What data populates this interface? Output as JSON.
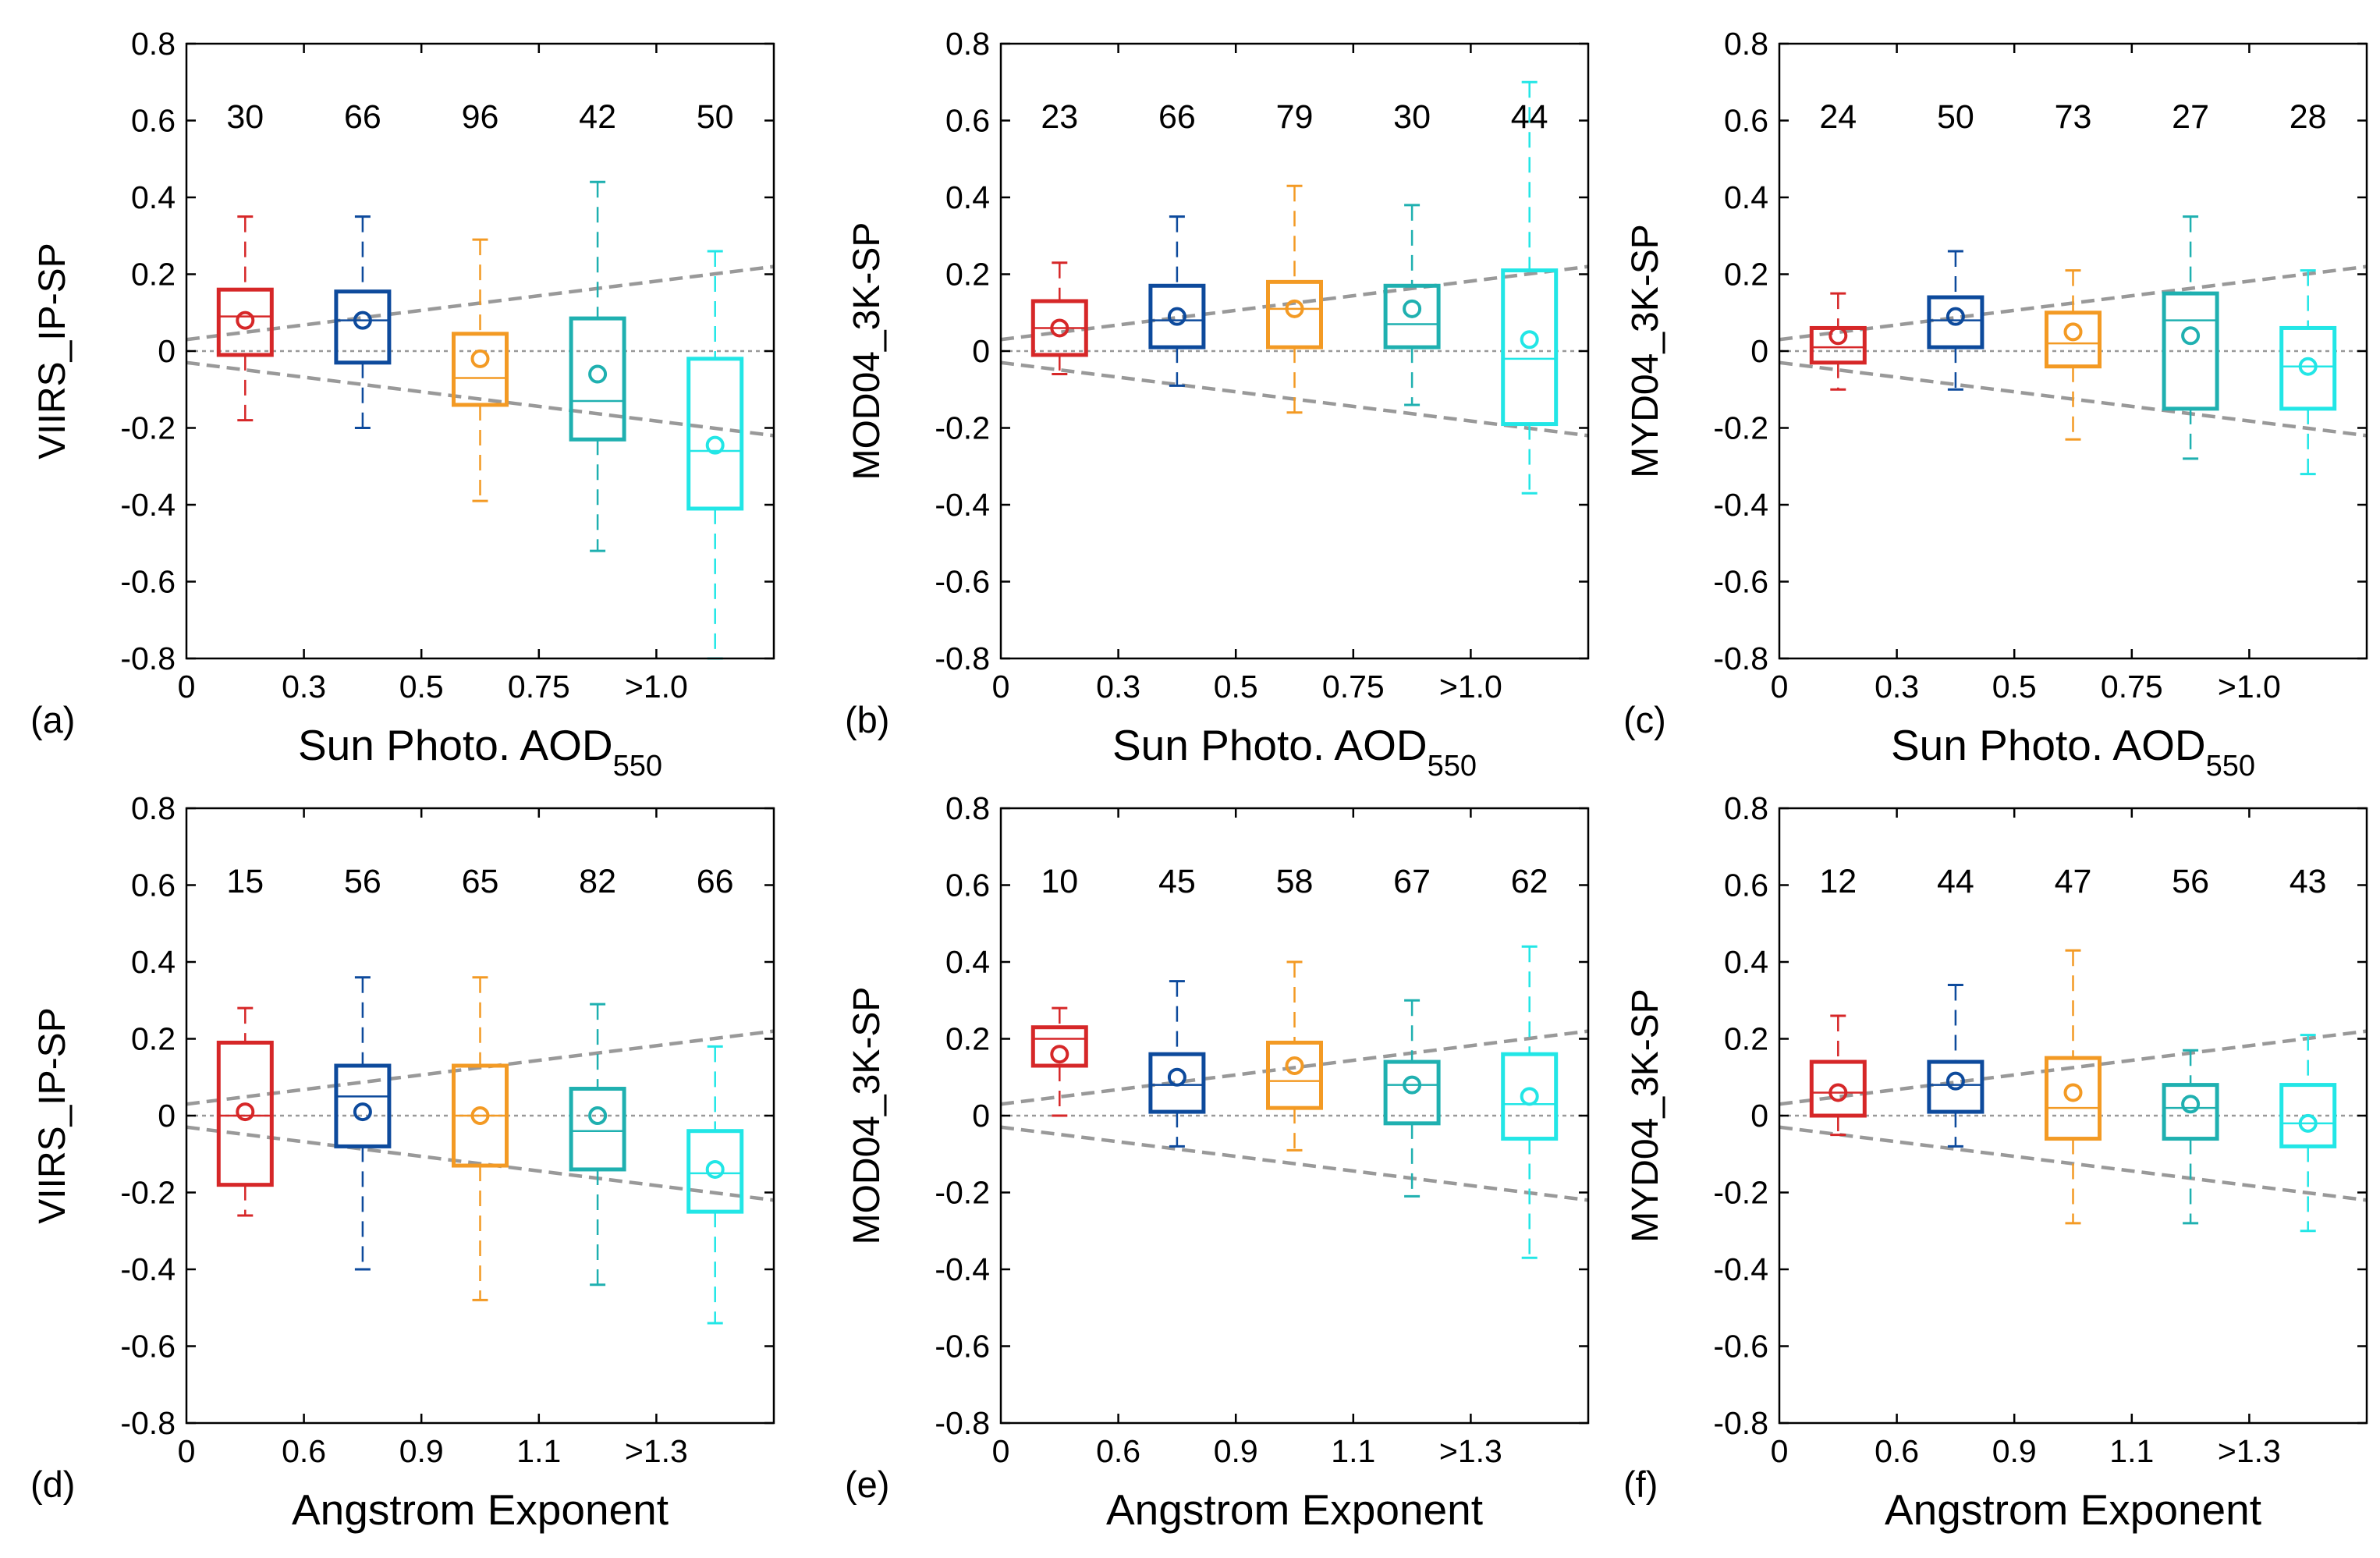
{
  "figure": {
    "ref_line_color": "#999999",
    "series_colors": [
      "#d62728",
      "#0d4a9c",
      "#f39a24",
      "#1fb0b0",
      "#22e6e6"
    ]
  },
  "chart_data": [
    {
      "type": "box",
      "panel_label": "(a)",
      "ylabel": "VIIRS_IP-SP",
      "xlabel": "Sun Photo. AOD",
      "xlabel_sub": "550",
      "xtick_labels": [
        "0",
        "0.3",
        "0.5",
        "0.75",
        ">1.0"
      ],
      "ylim": [
        -0.8,
        0.8
      ],
      "ytick_labels": [
        "0.8",
        "0.6",
        "0.4",
        "0.2",
        "0",
        "-0.2",
        "-0.4",
        "-0.6",
        "-0.8"
      ],
      "counts": [
        "30",
        "66",
        "96",
        "42",
        "50"
      ],
      "boxes": [
        {
          "min": -0.18,
          "q1": -0.01,
          "median": 0.09,
          "q3": 0.16,
          "max": 0.35,
          "mean": 0.08
        },
        {
          "min": -0.2,
          "q1": -0.03,
          "median": 0.08,
          "q3": 0.155,
          "max": 0.35,
          "mean": 0.08
        },
        {
          "min": -0.39,
          "q1": -0.14,
          "median": -0.07,
          "q3": 0.045,
          "max": 0.29,
          "mean": -0.02
        },
        {
          "min": -0.52,
          "q1": -0.23,
          "median": -0.13,
          "q3": 0.085,
          "max": 0.44,
          "mean": -0.06
        },
        {
          "min": -0.8,
          "q1": -0.41,
          "median": -0.26,
          "q3": -0.02,
          "max": 0.26,
          "mean": -0.245
        }
      ],
      "ee_envelope": {
        "intercept": 0.03,
        "end": 0.22
      }
    },
    {
      "type": "box",
      "panel_label": "(b)",
      "ylabel": "MOD04_3K-SP",
      "xlabel": "Sun Photo. AOD",
      "xlabel_sub": "550",
      "xtick_labels": [
        "0",
        "0.3",
        "0.5",
        "0.75",
        ">1.0"
      ],
      "ylim": [
        -0.8,
        0.8
      ],
      "ytick_labels": [
        "0.8",
        "0.6",
        "0.4",
        "0.2",
        "0",
        "-0.2",
        "-0.4",
        "-0.6",
        "-0.8"
      ],
      "counts": [
        "23",
        "66",
        "79",
        "30",
        "44"
      ],
      "boxes": [
        {
          "min": -0.06,
          "q1": -0.01,
          "median": 0.06,
          "q3": 0.13,
          "max": 0.23,
          "mean": 0.06
        },
        {
          "min": -0.09,
          "q1": 0.01,
          "median": 0.08,
          "q3": 0.17,
          "max": 0.35,
          "mean": 0.09
        },
        {
          "min": -0.16,
          "q1": 0.01,
          "median": 0.11,
          "q3": 0.18,
          "max": 0.43,
          "mean": 0.11
        },
        {
          "min": -0.14,
          "q1": 0.01,
          "median": 0.07,
          "q3": 0.17,
          "max": 0.38,
          "mean": 0.11
        },
        {
          "min": -0.37,
          "q1": -0.19,
          "median": -0.02,
          "q3": 0.21,
          "max": 0.7,
          "mean": 0.03
        }
      ],
      "ee_envelope": {
        "intercept": 0.03,
        "end": 0.22
      }
    },
    {
      "type": "box",
      "panel_label": "(c)",
      "ylabel": "MYD04_3K-SP",
      "xlabel": "Sun Photo. AOD",
      "xlabel_sub": "550",
      "xtick_labels": [
        "0",
        "0.3",
        "0.5",
        "0.75",
        ">1.0"
      ],
      "ylim": [
        -0.8,
        0.8
      ],
      "ytick_labels": [
        "0.8",
        "0.6",
        "0.4",
        "0.2",
        "0",
        "-0.2",
        "-0.4",
        "-0.6",
        "-0.8"
      ],
      "counts": [
        "24",
        "50",
        "73",
        "27",
        "28"
      ],
      "boxes": [
        {
          "min": -0.1,
          "q1": -0.03,
          "median": 0.01,
          "q3": 0.06,
          "max": 0.15,
          "mean": 0.04
        },
        {
          "min": -0.1,
          "q1": 0.01,
          "median": 0.08,
          "q3": 0.14,
          "max": 0.26,
          "mean": 0.09
        },
        {
          "min": -0.23,
          "q1": -0.04,
          "median": 0.02,
          "q3": 0.1,
          "max": 0.21,
          "mean": 0.05
        },
        {
          "min": -0.28,
          "q1": -0.15,
          "median": 0.08,
          "q3": 0.15,
          "max": 0.35,
          "mean": 0.04
        },
        {
          "min": -0.32,
          "q1": -0.15,
          "median": -0.04,
          "q3": 0.06,
          "max": 0.21,
          "mean": -0.04
        }
      ],
      "ee_envelope": {
        "intercept": 0.03,
        "end": 0.22
      }
    },
    {
      "type": "box",
      "panel_label": "(d)",
      "ylabel": "VIIRS_IP-SP",
      "xlabel": "Angstrom Exponent",
      "xlabel_sub": "",
      "xtick_labels": [
        "0",
        "0.6",
        "0.9",
        "1.1",
        ">1.3"
      ],
      "ylim": [
        -0.8,
        0.8
      ],
      "ytick_labels": [
        "0.8",
        "0.6",
        "0.4",
        "0.2",
        "0",
        "-0.2",
        "-0.4",
        "-0.6",
        "-0.8"
      ],
      "counts": [
        "15",
        "56",
        "65",
        "82",
        "66"
      ],
      "boxes": [
        {
          "min": -0.26,
          "q1": -0.18,
          "median": 0.0,
          "q3": 0.19,
          "max": 0.28,
          "mean": 0.01
        },
        {
          "min": -0.4,
          "q1": -0.08,
          "median": 0.05,
          "q3": 0.13,
          "max": 0.36,
          "mean": 0.01
        },
        {
          "min": -0.48,
          "q1": -0.13,
          "median": 0.0,
          "q3": 0.13,
          "max": 0.36,
          "mean": 0.0
        },
        {
          "min": -0.44,
          "q1": -0.14,
          "median": -0.04,
          "q3": 0.07,
          "max": 0.29,
          "mean": 0.0
        },
        {
          "min": -0.54,
          "q1": -0.25,
          "median": -0.15,
          "q3": -0.04,
          "max": 0.18,
          "mean": -0.14
        }
      ],
      "ee_envelope": {
        "intercept": 0.03,
        "end": 0.22
      }
    },
    {
      "type": "box",
      "panel_label": "(e)",
      "ylabel": "MOD04_3K-SP",
      "xlabel": "Angstrom Exponent",
      "xlabel_sub": "",
      "xtick_labels": [
        "0",
        "0.6",
        "0.9",
        "1.1",
        ">1.3"
      ],
      "ylim": [
        -0.8,
        0.8
      ],
      "ytick_labels": [
        "0.8",
        "0.6",
        "0.4",
        "0.2",
        "0",
        "-0.2",
        "-0.4",
        "-0.6",
        "-0.8"
      ],
      "counts": [
        "10",
        "45",
        "58",
        "67",
        "62"
      ],
      "boxes": [
        {
          "min": 0.0,
          "q1": 0.13,
          "median": 0.2,
          "q3": 0.23,
          "max": 0.28,
          "mean": 0.16
        },
        {
          "min": -0.08,
          "q1": 0.01,
          "median": 0.08,
          "q3": 0.16,
          "max": 0.35,
          "mean": 0.1
        },
        {
          "min": -0.09,
          "q1": 0.02,
          "median": 0.09,
          "q3": 0.19,
          "max": 0.4,
          "mean": 0.13
        },
        {
          "min": -0.21,
          "q1": -0.02,
          "median": 0.08,
          "q3": 0.14,
          "max": 0.3,
          "mean": 0.08
        },
        {
          "min": -0.37,
          "q1": -0.06,
          "median": 0.03,
          "q3": 0.16,
          "max": 0.44,
          "mean": 0.05
        }
      ],
      "ee_envelope": {
        "intercept": 0.03,
        "end": 0.22
      }
    },
    {
      "type": "box",
      "panel_label": "(f)",
      "ylabel": "MYD04_3K-SP",
      "xlabel": "Angstrom Exponent",
      "xlabel_sub": "",
      "xtick_labels": [
        "0",
        "0.6",
        "0.9",
        "1.1",
        ">1.3"
      ],
      "ylim": [
        -0.8,
        0.8
      ],
      "ytick_labels": [
        "0.8",
        "0.6",
        "0.4",
        "0.2",
        "0",
        "-0.2",
        "-0.4",
        "-0.6",
        "-0.8"
      ],
      "counts": [
        "12",
        "44",
        "47",
        "56",
        "43"
      ],
      "boxes": [
        {
          "min": -0.05,
          "q1": 0.0,
          "median": 0.06,
          "q3": 0.14,
          "max": 0.26,
          "mean": 0.06
        },
        {
          "min": -0.08,
          "q1": 0.01,
          "median": 0.08,
          "q3": 0.14,
          "max": 0.34,
          "mean": 0.09
        },
        {
          "min": -0.28,
          "q1": -0.06,
          "median": 0.02,
          "q3": 0.15,
          "max": 0.43,
          "mean": 0.06
        },
        {
          "min": -0.28,
          "q1": -0.06,
          "median": 0.02,
          "q3": 0.08,
          "max": 0.17,
          "mean": 0.03
        },
        {
          "min": -0.3,
          "q1": -0.08,
          "median": -0.02,
          "q3": 0.08,
          "max": 0.21,
          "mean": -0.02
        }
      ],
      "ee_envelope": {
        "intercept": 0.03,
        "end": 0.22
      }
    }
  ]
}
